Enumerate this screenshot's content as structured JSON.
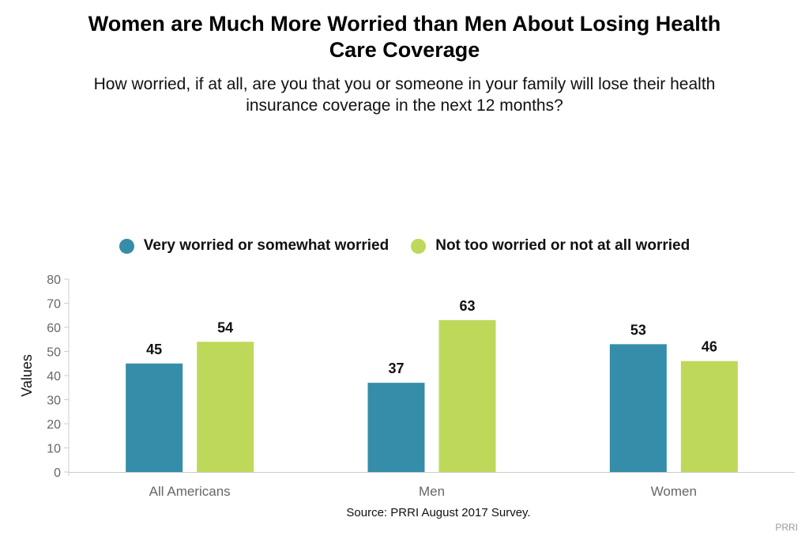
{
  "title_lines": [
    "Women are Much More Worried than Men About Losing Health",
    "Care Coverage"
  ],
  "subtitle_lines": [
    "How worried, if at all, are you that you or someone in your family will lose their health",
    "insurance coverage in the next 12 months?"
  ],
  "source": "Source: PRRI August 2017 Survey.",
  "credit": "PRRI",
  "chart_data": {
    "type": "bar",
    "categories": [
      "All Americans",
      "Men",
      "Women"
    ],
    "series": [
      {
        "name": "Very worried or somewhat worried",
        "color": "#358DA9",
        "values": [
          45,
          37,
          53
        ]
      },
      {
        "name": "Not too worried or not at all worried",
        "color": "#BED85A",
        "values": [
          54,
          63,
          46
        ]
      }
    ],
    "ylabel": "Values",
    "xlabel": "",
    "ylim": [
      0,
      80
    ],
    "yticks": [
      0,
      10,
      20,
      30,
      40,
      50,
      60,
      70,
      80
    ],
    "grid": false,
    "legend": "top-center",
    "data_labels": true
  }
}
